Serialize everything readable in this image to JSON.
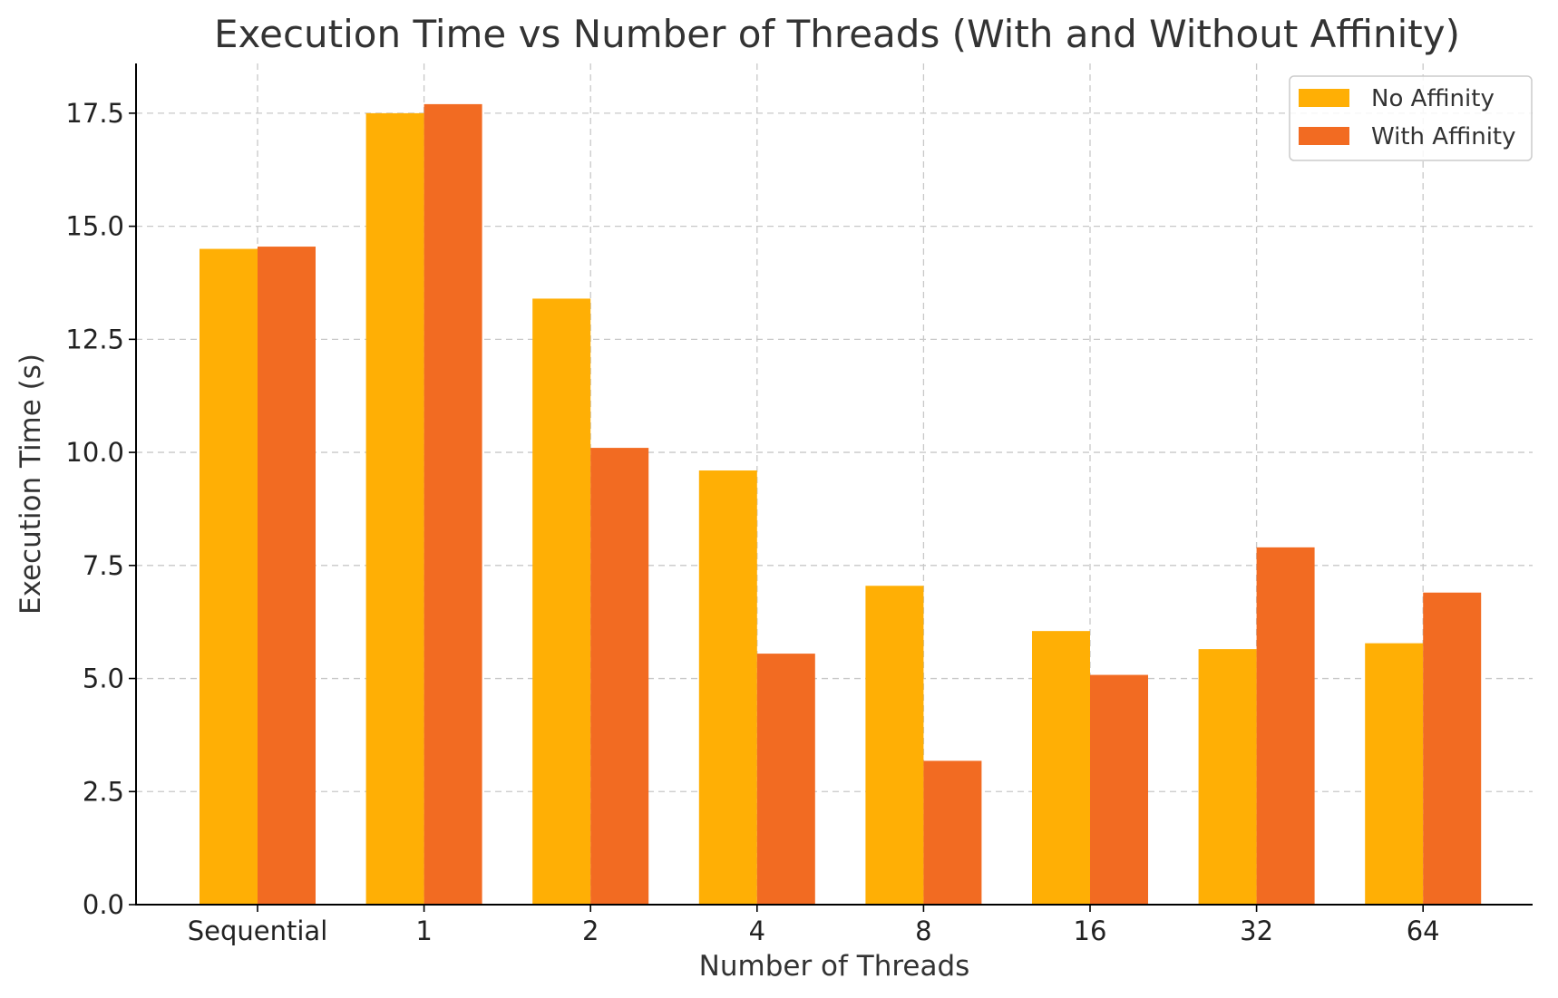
{
  "chart_data": {
    "type": "bar",
    "title": "Execution Time vs Number of Threads (With and Without Affinity)",
    "xlabel": "Number of Threads",
    "ylabel": "Execution Time (s)",
    "categories": [
      "Sequential",
      "1",
      "2",
      "4",
      "8",
      "16",
      "32",
      "64"
    ],
    "series": [
      {
        "name": "No Affinity",
        "color": "#FFAF05",
        "values": [
          14.5,
          17.5,
          13.4,
          9.6,
          7.05,
          6.05,
          5.65,
          5.78
        ]
      },
      {
        "name": "With Affinity",
        "color": "#F26B22",
        "values": [
          14.55,
          17.7,
          10.1,
          5.55,
          3.18,
          5.08,
          7.9,
          6.9
        ]
      }
    ],
    "ylim": [
      0,
      18.6
    ],
    "yticks": [
      0,
      2.5,
      5,
      7.5,
      10,
      12.5,
      15,
      17.5
    ],
    "ytick_labels": [
      "0.0",
      "2.5",
      "5.0",
      "7.5",
      "10.0",
      "12.5",
      "15.0",
      "17.5"
    ],
    "grid": true,
    "legend_position": "top-right"
  }
}
